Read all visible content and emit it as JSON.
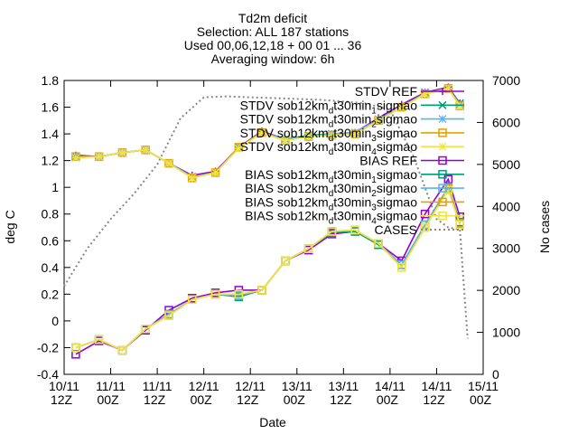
{
  "chart_data": {
    "type": "line",
    "title_lines": [
      "Td2m deficit",
      "Selection: ALL    187 stations",
      "Used 00,06,12,18 + 00 01 ... 36",
      "Averaging window:  6h"
    ],
    "xlabel": "Date",
    "ylabel": "deg C",
    "y2label": "No cases",
    "ylim": [
      -0.4,
      1.8
    ],
    "y2lim": [
      0,
      7000
    ],
    "xlim": [
      0,
      108
    ],
    "y_ticks": [
      "-0.4",
      "-0.2",
      "0",
      "0.2",
      "0.4",
      "0.6",
      "0.8",
      "1",
      "1.2",
      "1.4",
      "1.6",
      "1.8"
    ],
    "y2_ticks": [
      "0",
      "1000",
      "2000",
      "3000",
      "4000",
      "5000",
      "6000",
      "7000"
    ],
    "x_ticks": [
      {
        "l1": "10/11",
        "l2": "12Z"
      },
      {
        "l1": "11/11",
        "l2": "00Z"
      },
      {
        "l1": "11/11",
        "l2": "12Z"
      },
      {
        "l1": "12/11",
        "l2": "00Z"
      },
      {
        "l1": "12/11",
        "l2": "12Z"
      },
      {
        "l1": "13/11",
        "l2": "00Z"
      },
      {
        "l1": "13/11",
        "l2": "12Z"
      },
      {
        "l1": "14/11",
        "l2": "00Z"
      },
      {
        "l1": "14/11",
        "l2": "12Z"
      },
      {
        "l1": "15/11",
        "l2": "00Z"
      }
    ],
    "x": [
      3,
      9,
      15,
      21,
      27,
      33,
      39,
      45,
      51,
      57,
      63,
      69,
      75,
      81,
      87,
      93,
      99,
      102
    ],
    "cases": {
      "name": "CASES",
      "color": "#888888",
      "x": [
        0,
        6,
        12,
        18,
        24,
        30,
        36,
        42,
        48,
        54,
        60,
        66,
        72,
        78,
        84,
        90,
        96,
        99,
        102,
        104
      ],
      "values": [
        2100,
        3000,
        3700,
        4300,
        5000,
        6100,
        6600,
        6620,
        6600,
        6580,
        6560,
        6540,
        6500,
        6450,
        6300,
        5200,
        3700,
        3500,
        3450,
        850
      ]
    },
    "legend": [
      {
        "label": "STDV REF",
        "sub": "",
        "tail": "",
        "color": "#9400d3",
        "marker": "plus"
      },
      {
        "label": "STDV sob12km",
        "sub": "d",
        "tail": "t30min1sigmao",
        "sub_n": "1",
        "color": "#009e73",
        "marker": "x"
      },
      {
        "label": "STDV sob12km",
        "sub": "d",
        "tail": "t30min2sigmao",
        "sub_n": "2",
        "color": "#56b4e9",
        "marker": "star"
      },
      {
        "label": "STDV sob12km",
        "sub": "d",
        "tail": "t30min3sigmao",
        "sub_n": "3",
        "color": "#e69f00",
        "marker": "square"
      },
      {
        "label": "STDV sob12km",
        "sub": "d",
        "tail": "t30min4sigmao",
        "sub_n": "4",
        "color": "#f0e442",
        "marker": "star"
      },
      {
        "label": "BIAS REF",
        "sub": "",
        "tail": "",
        "color": "#9400d3",
        "marker": "square"
      },
      {
        "label": "BIAS sob12km",
        "sub": "d",
        "tail": "t30min1sigmao",
        "sub_n": "1",
        "color": "#009e73",
        "marker": "square"
      },
      {
        "label": "BIAS sob12km",
        "sub": "d",
        "tail": "t30min2sigmao",
        "sub_n": "2",
        "color": "#56b4e9",
        "marker": "square"
      },
      {
        "label": "BIAS sob12km",
        "sub": "d",
        "tail": "t30min3sigmao",
        "sub_n": "3",
        "color": "#e69f00",
        "marker": "square"
      },
      {
        "label": "BIAS sob12km",
        "sub": "d",
        "tail": "t30min4sigmao",
        "sub_n": "4",
        "color": "#f0e442",
        "marker": "square"
      },
      {
        "label": "CASES",
        "sub": "",
        "tail": "",
        "color": "#888888",
        "marker": "dash"
      }
    ],
    "series": [
      {
        "name": "STDV REF",
        "color": "#9400d3",
        "marker": "plus",
        "values": [
          1.24,
          1.23,
          1.26,
          1.28,
          1.18,
          1.09,
          1.12,
          1.3,
          1.42,
          1.36,
          1.38,
          1.4,
          1.41,
          1.52,
          1.62,
          1.71,
          1.75,
          1.63
        ]
      },
      {
        "name": "STDV sob12km d t30min1sigmao",
        "color": "#009e73",
        "marker": "x",
        "values": [
          1.23,
          1.23,
          1.26,
          1.28,
          1.18,
          1.08,
          1.11,
          1.3,
          1.41,
          1.36,
          1.39,
          1.4,
          1.4,
          1.5,
          1.6,
          1.71,
          1.74,
          1.63
        ]
      },
      {
        "name": "STDV sob12km d t30min2sigmao",
        "color": "#56b4e9",
        "marker": "star",
        "values": [
          1.23,
          1.23,
          1.26,
          1.28,
          1.18,
          1.08,
          1.11,
          1.3,
          1.41,
          1.36,
          1.38,
          1.4,
          1.41,
          1.51,
          1.6,
          1.7,
          1.74,
          1.62
        ]
      },
      {
        "name": "STDV sob12km d t30min3sigmao",
        "color": "#e69f00",
        "marker": "square",
        "values": [
          1.23,
          1.23,
          1.26,
          1.28,
          1.18,
          1.07,
          1.11,
          1.3,
          1.41,
          1.35,
          1.38,
          1.39,
          1.4,
          1.5,
          1.6,
          1.7,
          1.74,
          1.61
        ]
      },
      {
        "name": "STDV sob12km d t30min4sigmao",
        "color": "#f0e442",
        "marker": "star",
        "values": [
          1.22,
          1.23,
          1.26,
          1.28,
          1.18,
          1.07,
          1.11,
          1.29,
          1.41,
          1.35,
          1.38,
          1.39,
          1.4,
          1.5,
          1.6,
          1.7,
          1.74,
          1.61
        ]
      },
      {
        "name": "BIAS REF",
        "color": "#9400d3",
        "marker": "square",
        "values": [
          -0.25,
          -0.15,
          -0.22,
          -0.07,
          0.08,
          0.17,
          0.21,
          0.23,
          0.23,
          0.45,
          0.53,
          0.65,
          0.67,
          0.58,
          0.45,
          0.8,
          1.06,
          0.78
        ]
      },
      {
        "name": "BIAS sob12km d t30min1sigmao",
        "color": "#009e73",
        "marker": "square",
        "values": [
          -0.2,
          -0.14,
          -0.22,
          -0.06,
          0.05,
          0.16,
          0.2,
          0.18,
          0.23,
          0.45,
          0.54,
          0.66,
          0.67,
          0.57,
          0.42,
          0.72,
          1.0,
          0.74
        ]
      },
      {
        "name": "BIAS sob12km d t30min2sigmao",
        "color": "#56b4e9",
        "marker": "square",
        "values": [
          -0.2,
          -0.14,
          -0.22,
          -0.06,
          0.05,
          0.16,
          0.2,
          0.19,
          0.23,
          0.45,
          0.54,
          0.67,
          0.68,
          0.58,
          0.42,
          0.72,
          1.0,
          0.73
        ]
      },
      {
        "name": "BIAS sob12km d t30min3sigmao",
        "color": "#e69f00",
        "marker": "square",
        "values": [
          -0.2,
          -0.14,
          -0.22,
          -0.06,
          0.04,
          0.16,
          0.2,
          0.2,
          0.23,
          0.45,
          0.54,
          0.67,
          0.68,
          0.58,
          0.4,
          0.7,
          0.99,
          0.73
        ]
      },
      {
        "name": "BIAS sob12km d t30min4sigmao",
        "color": "#f0e442",
        "marker": "square",
        "values": [
          -0.2,
          -0.14,
          -0.22,
          -0.06,
          0.04,
          0.16,
          0.2,
          0.2,
          0.23,
          0.45,
          0.54,
          0.67,
          0.68,
          0.58,
          0.4,
          0.7,
          0.98,
          0.72
        ]
      }
    ]
  }
}
